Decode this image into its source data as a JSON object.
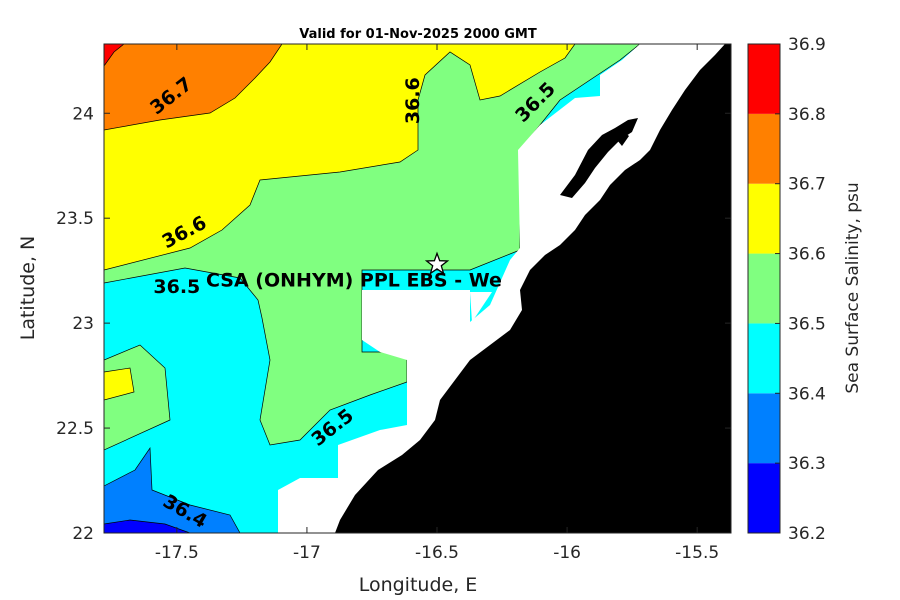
{
  "title": "Valid for 01-Nov-2025 2000 GMT",
  "map": {
    "xlabel": "Longitude, E",
    "ylabel": "Latitude, N",
    "lon_range": [
      -17.78,
      -15.37
    ],
    "lat_range": [
      22.0,
      24.33
    ],
    "x_ticks": [
      -17.5,
      -17,
      -16.5,
      -16,
      -15.5
    ],
    "x_tick_labels": [
      "-17.5",
      "-17",
      "-16.5",
      "-16",
      "-15.5"
    ],
    "y_ticks": [
      22,
      22.5,
      23,
      23.5,
      24
    ],
    "y_tick_labels": [
      "22",
      "22.5",
      "23",
      "23.5",
      "24"
    ],
    "land_color": "#000000",
    "nodata_color": "#ffffff"
  },
  "station": {
    "label": "CSA (ONHYM) PPL EBS  - We",
    "lon": -16.5,
    "lat": 23.28,
    "marker": "star-icon"
  },
  "contour_labels": [
    {
      "text": "36.7",
      "lon": -17.52,
      "lat": 24.08,
      "angle": -38
    },
    {
      "text": "36.6",
      "lon": -16.59,
      "lat": 24.06,
      "angle": -90
    },
    {
      "text": "36.5",
      "lon": -16.12,
      "lat": 24.05,
      "angle": -45
    },
    {
      "text": "36.6",
      "lon": -17.47,
      "lat": 23.43,
      "angle": -28
    },
    {
      "text": "36.5",
      "lon": -17.5,
      "lat": 23.17,
      "angle": 0
    },
    {
      "text": "36.5",
      "lon": -16.9,
      "lat": 22.5,
      "angle": -38
    },
    {
      "text": "36.4",
      "lon": -17.47,
      "lat": 22.1,
      "angle": 30
    }
  ],
  "colorbar": {
    "title": "Sea Surface Salinity, psu",
    "ticks": [
      "36.2",
      "36.3",
      "36.4",
      "36.5",
      "36.6",
      "36.7",
      "36.8",
      "36.9"
    ],
    "bands": [
      {
        "min": 36.2,
        "max": 36.3,
        "color": "#0000ff"
      },
      {
        "min": 36.3,
        "max": 36.4,
        "color": "#0080ff"
      },
      {
        "min": 36.4,
        "max": 36.5,
        "color": "#00ffff"
      },
      {
        "min": 36.5,
        "max": 36.6,
        "color": "#80ff80"
      },
      {
        "min": 36.6,
        "max": 36.7,
        "color": "#ffff00"
      },
      {
        "min": 36.7,
        "max": 36.8,
        "color": "#ff8000"
      },
      {
        "min": 36.8,
        "max": 36.9,
        "color": "#ff0000"
      }
    ]
  }
}
